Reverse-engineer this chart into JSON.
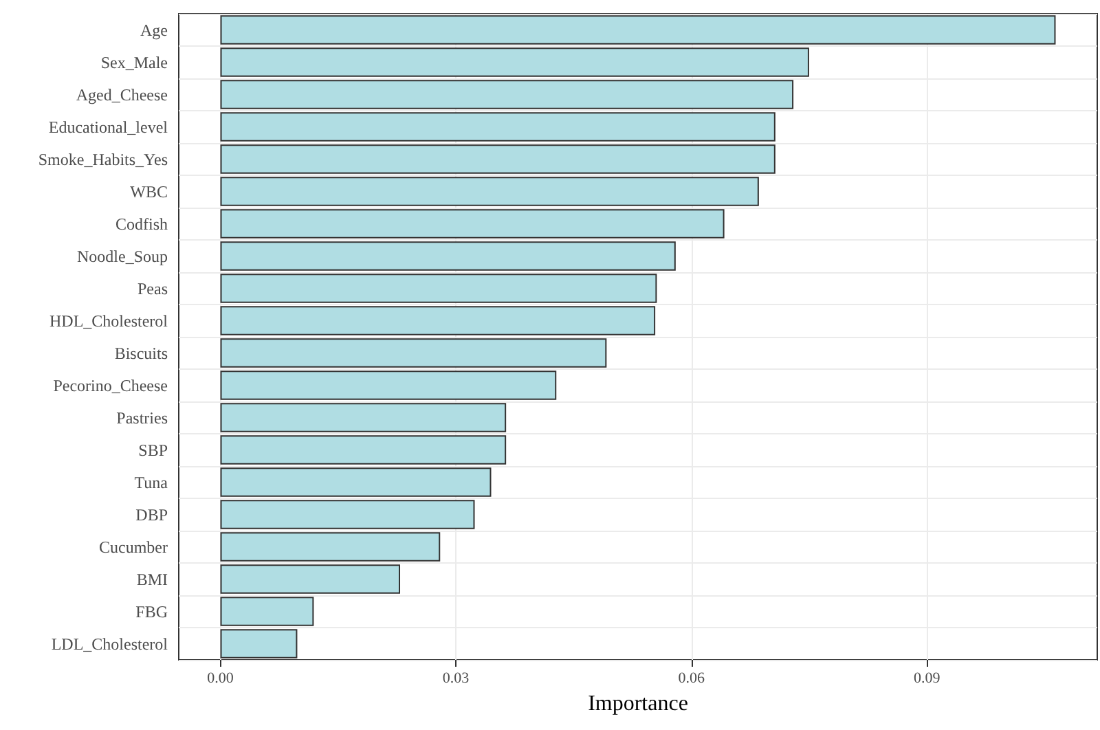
{
  "chart_data": {
    "type": "bar",
    "orientation": "horizontal",
    "xlabel": "Importance",
    "categories": [
      "Age",
      "Sex_Male",
      "Aged_Cheese",
      "Educational_level",
      "Smoke_Habits_Yes",
      "WBC",
      "Codfish",
      "Noodle_Soup",
      "Peas",
      "HDL_Cholesterol",
      "Biscuits",
      "Pecorino_Cheese",
      "Pastries",
      "SBP",
      "Tuna",
      "DBP",
      "Cucumber",
      "BMI",
      "FBG",
      "LDL_Cholesterol"
    ],
    "values": [
      0.1064,
      0.075,
      0.073,
      0.0707,
      0.0707,
      0.0686,
      0.0642,
      0.058,
      0.0556,
      0.0554,
      0.0492,
      0.0428,
      0.0364,
      0.0364,
      0.0345,
      0.0324,
      0.028,
      0.0229,
      0.0119,
      0.0098
    ],
    "color": "#b0dde3",
    "xlim": [
      -0.0053,
      0.1117
    ],
    "xticks": [
      {
        "value": 0,
        "label": "0.00"
      },
      0.03,
      0.06,
      0.09
    ],
    "grid": true
  }
}
